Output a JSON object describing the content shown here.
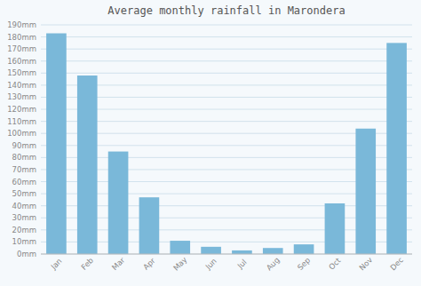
{
  "chart_data": {
    "type": "bar",
    "title": "Average monthly rainfall in Marondera",
    "categories": [
      "Jan",
      "Feb",
      "Mar",
      "Apr",
      "May",
      "Jun",
      "Jul",
      "Aug",
      "Sep",
      "Oct",
      "Nov",
      "Dec"
    ],
    "values": [
      183,
      148,
      85,
      47,
      11,
      6,
      3,
      5,
      8,
      42,
      104,
      175
    ],
    "color": "#7ab8d9",
    "ylim": [
      0,
      190
    ],
    "yticks": [
      {
        "value": 0,
        "label": "0mm"
      },
      {
        "value": 10,
        "label": "10mm"
      },
      {
        "value": 20,
        "label": "20mm"
      },
      {
        "value": 30,
        "label": "30mm"
      },
      {
        "value": 40,
        "label": "40mm"
      },
      {
        "value": 50,
        "label": "50mm"
      },
      {
        "value": 60,
        "label": "60mm"
      },
      {
        "value": 70,
        "label": "70mm"
      },
      {
        "value": 80,
        "label": "80mm"
      },
      {
        "value": 90,
        "label": "90mm"
      },
      {
        "value": 100,
        "label": "100mm"
      },
      {
        "value": 110,
        "label": "110mm"
      },
      {
        "value": 120,
        "label": "120mm"
      },
      {
        "value": 130,
        "label": "130mm"
      },
      {
        "value": 140,
        "label": "140mm"
      },
      {
        "value": 150,
        "label": "150mm"
      },
      {
        "value": 160,
        "label": "160mm"
      },
      {
        "value": 170,
        "label": "170mm"
      },
      {
        "value": 180,
        "label": "180mm"
      },
      {
        "value": 190,
        "label": "190mm"
      }
    ],
    "grid": true
  }
}
